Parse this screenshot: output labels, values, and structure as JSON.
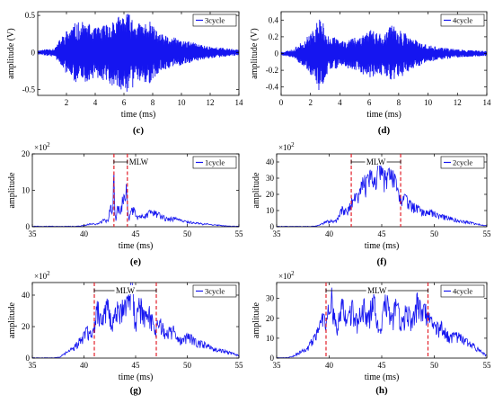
{
  "colors": {
    "signal": "#1515f0",
    "mlw_marker": "#e3202a",
    "axis": "#000000",
    "mlw_bracket": "#000000"
  },
  "chart_data": [
    {
      "id": "c",
      "type": "line",
      "caption": "(c)",
      "legend": "3cycle",
      "xlabel": "time (ms)",
      "ylabel": "amplitude (V)",
      "xlim": [
        0,
        14
      ],
      "ylim": [
        -0.58,
        0.55
      ],
      "xticks": [
        2,
        4,
        6,
        8,
        10,
        12,
        14
      ],
      "yticks": [
        -0.5,
        0,
        0.5
      ],
      "xtick_labels": [
        "2",
        "4",
        "6",
        "8",
        "10",
        "12",
        "14"
      ],
      "ytick_labels": [
        "-0.5",
        "0",
        "0.5"
      ],
      "exponent": "",
      "signal": {
        "kind": "waveform",
        "seed": 11,
        "envelope": [
          [
            0,
            0.03
          ],
          [
            1.2,
            0.06
          ],
          [
            1.6,
            0.2
          ],
          [
            2,
            0.3
          ],
          [
            2.6,
            0.4
          ],
          [
            3.3,
            0.42
          ],
          [
            4,
            0.33
          ],
          [
            4.6,
            0.38
          ],
          [
            5.2,
            0.45
          ],
          [
            6.2,
            0.55
          ],
          [
            7,
            0.4
          ],
          [
            7.8,
            0.42
          ],
          [
            8.5,
            0.25
          ],
          [
            9.5,
            0.2
          ],
          [
            10.5,
            0.15
          ],
          [
            11.5,
            0.1
          ],
          [
            12.5,
            0.07
          ],
          [
            14,
            0.04
          ]
        ]
      }
    },
    {
      "id": "d",
      "type": "line",
      "caption": "(d)",
      "legend": "4cycle",
      "xlabel": "time (ms)",
      "ylabel": "amplitude (V)",
      "xlim": [
        0,
        14
      ],
      "ylim": [
        -0.5,
        0.5
      ],
      "xticks": [
        0,
        2,
        4,
        6,
        8,
        10,
        12,
        14
      ],
      "yticks": [
        -0.4,
        -0.2,
        0,
        0.2,
        0.4
      ],
      "xtick_labels": [
        "0",
        "2",
        "4",
        "6",
        "8",
        "10",
        "12",
        "14"
      ],
      "ytick_labels": [
        "-0.4",
        "-0.2",
        "0",
        "0.2",
        "0.4"
      ],
      "exponent": "",
      "signal": {
        "kind": "waveform",
        "seed": 23,
        "envelope": [
          [
            0,
            0.02
          ],
          [
            0.8,
            0.05
          ],
          [
            1.5,
            0.15
          ],
          [
            2.2,
            0.3
          ],
          [
            2.6,
            0.45
          ],
          [
            3.2,
            0.25
          ],
          [
            4,
            0.15
          ],
          [
            5,
            0.2
          ],
          [
            6,
            0.3
          ],
          [
            7,
            0.25
          ],
          [
            7.6,
            0.35
          ],
          [
            8,
            0.3
          ],
          [
            8.8,
            0.2
          ],
          [
            10,
            0.1
          ],
          [
            11,
            0.07
          ],
          [
            12,
            0.05
          ],
          [
            14,
            0.03
          ]
        ]
      }
    },
    {
      "id": "e",
      "type": "line",
      "caption": "(e)",
      "legend": "1cycle",
      "xlabel": "time (ms)",
      "ylabel": "amplitude",
      "xlim": [
        35,
        55
      ],
      "ylim": [
        0,
        20
      ],
      "xticks": [
        35,
        40,
        45,
        50,
        55
      ],
      "yticks": [
        0,
        10,
        20
      ],
      "xtick_labels": [
        "35",
        "40",
        "45",
        "50",
        "55"
      ],
      "ytick_labels": [
        "0",
        "10",
        "20"
      ],
      "exponent": "×10",
      "exponent_power": "2",
      "mlw": {
        "label": "MLW",
        "x0": 42.9,
        "x1": 44.2
      },
      "signal": {
        "kind": "spectrum",
        "seed": 31,
        "base": 0.18,
        "peaks": [
          [
            40.8,
            0.8,
            0.8
          ],
          [
            42,
            2,
            0.5
          ],
          [
            42.6,
            5.5,
            0.2
          ],
          [
            42.9,
            13.8,
            0.1
          ],
          [
            43.3,
            6,
            0.2
          ],
          [
            43.8,
            9,
            0.25
          ],
          [
            44.1,
            12.5,
            0.12
          ],
          [
            44.7,
            5,
            0.4
          ],
          [
            45.6,
            3,
            0.6
          ],
          [
            46.5,
            4,
            0.5
          ],
          [
            47.3,
            3.2,
            0.6
          ],
          [
            48.5,
            2.2,
            0.9
          ],
          [
            50,
            1.3,
            1.2
          ],
          [
            52,
            0.6,
            1.5
          ]
        ]
      }
    },
    {
      "id": "f",
      "type": "line",
      "caption": "(f)",
      "legend": "2cycle",
      "xlabel": "time (ms)",
      "ylabel": "amplitude",
      "xlim": [
        35,
        55
      ],
      "ylim": [
        0,
        45
      ],
      "xticks": [
        35,
        40,
        45,
        50,
        55
      ],
      "yticks": [
        0,
        10,
        20,
        30,
        40
      ],
      "xtick_labels": [
        "35",
        "40",
        "45",
        "50",
        "55"
      ],
      "ytick_labels": [
        "0",
        "10",
        "20",
        "30",
        "40"
      ],
      "exponent": "×10",
      "exponent_power": "2",
      "mlw": {
        "label": "MLW",
        "x0": 42.1,
        "x1": 46.8
      },
      "signal": {
        "kind": "spectrum",
        "seed": 47,
        "base": 0.35,
        "peaks": [
          [
            40,
            4,
            0.8
          ],
          [
            41.3,
            12,
            0.5
          ],
          [
            42.3,
            20,
            0.5
          ],
          [
            43.2,
            28,
            0.5
          ],
          [
            44,
            32,
            0.5
          ],
          [
            44.8,
            38,
            0.4
          ],
          [
            45.5,
            30,
            0.5
          ],
          [
            46.2,
            28,
            0.5
          ],
          [
            47.2,
            18,
            0.6
          ],
          [
            48.2,
            12,
            0.7
          ],
          [
            49.5,
            9,
            0.9
          ],
          [
            51,
            6,
            1.2
          ],
          [
            53,
            3,
            1.5
          ]
        ]
      }
    },
    {
      "id": "g",
      "type": "line",
      "caption": "(g)",
      "legend": "3cycle",
      "xlabel": "time (ms)",
      "ylabel": "amplitude",
      "xlim": [
        35,
        55
      ],
      "ylim": [
        0,
        48
      ],
      "xticks": [
        35,
        40,
        45,
        50,
        55
      ],
      "yticks": [
        0,
        20,
        40
      ],
      "xtick_labels": [
        "35",
        "40",
        "45",
        "50",
        "55"
      ],
      "ytick_labels": [
        "0",
        "20",
        "40"
      ],
      "exponent": "×10",
      "exponent_power": "2",
      "mlw": {
        "label": "MLW",
        "x0": 41.0,
        "x1": 47.0
      },
      "signal": {
        "kind": "spectrum",
        "seed": 59,
        "base": 0.3,
        "peaks": [
          [
            38.6,
            5,
            0.7
          ],
          [
            39.6,
            11,
            0.6
          ],
          [
            40.4,
            18,
            0.5
          ],
          [
            41.3,
            34,
            0.4
          ],
          [
            42.2,
            38,
            0.5
          ],
          [
            43.2,
            32,
            0.5
          ],
          [
            44,
            36,
            0.5
          ],
          [
            44.6,
            46,
            0.3
          ],
          [
            45.4,
            38,
            0.5
          ],
          [
            46.3,
            30,
            0.5
          ],
          [
            47.3,
            24,
            0.6
          ],
          [
            48.5,
            20,
            0.7
          ],
          [
            50,
            14,
            0.9
          ],
          [
            51.5,
            9,
            1.1
          ],
          [
            53.5,
            5,
            1.4
          ]
        ]
      }
    },
    {
      "id": "h",
      "type": "line",
      "caption": "(h)",
      "legend": "4cycle",
      "xlabel": "time (ms)",
      "ylabel": "amplitude",
      "xlim": [
        35,
        55
      ],
      "ylim": [
        0,
        38
      ],
      "xticks": [
        35,
        40,
        45,
        50,
        55
      ],
      "yticks": [
        0,
        10,
        20,
        30
      ],
      "xtick_labels": [
        "35",
        "40",
        "45",
        "50",
        "55"
      ],
      "ytick_labels": [
        "0",
        "10",
        "20",
        "30"
      ],
      "exponent": "×10",
      "exponent_power": "2",
      "mlw": {
        "label": "MLW",
        "x0": 39.7,
        "x1": 49.4
      },
      "signal": {
        "kind": "spectrum",
        "seed": 71,
        "base": 0.3,
        "peaks": [
          [
            37.5,
            4,
            0.8
          ],
          [
            38.6,
            10,
            0.6
          ],
          [
            39.4,
            20,
            0.5
          ],
          [
            40.2,
            34,
            0.4
          ],
          [
            41.2,
            30,
            0.5
          ],
          [
            42.2,
            28,
            0.5
          ],
          [
            43.2,
            30,
            0.5
          ],
          [
            44.2,
            33,
            0.5
          ],
          [
            45.4,
            32,
            0.5
          ],
          [
            46.4,
            29,
            0.5
          ],
          [
            47.4,
            27,
            0.5
          ],
          [
            48.4,
            30,
            0.5
          ],
          [
            49.3,
            25,
            0.6
          ],
          [
            50.5,
            17,
            0.8
          ],
          [
            52,
            11,
            1
          ],
          [
            53.5,
            7,
            1.2
          ]
        ]
      }
    }
  ]
}
